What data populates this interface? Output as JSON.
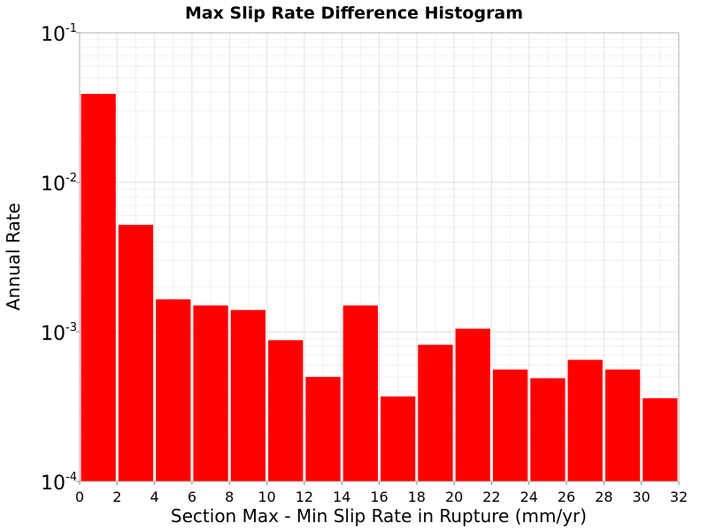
{
  "chart_data": {
    "type": "bar",
    "title": "Max Slip Rate Difference Histogram",
    "xlabel": "Section Max - Min Slip Rate in Rupture (mm/yr)",
    "ylabel": "Annual Rate",
    "xlim": [
      0,
      32
    ],
    "ylim": [
      0.0001,
      0.1
    ],
    "y_scale": "log",
    "grid": true,
    "bar_color": "#ff0000",
    "bin_width": 2,
    "x_ticks": [
      "0",
      "2",
      "4",
      "6",
      "8",
      "10",
      "12",
      "14",
      "16",
      "18",
      "20",
      "22",
      "24",
      "26",
      "28",
      "30",
      "32"
    ],
    "y_ticks": [
      {
        "base": "10",
        "exp": "-1",
        "value": 0.1
      },
      {
        "base": "10",
        "exp": "-2",
        "value": 0.01
      },
      {
        "base": "10",
        "exp": "-3",
        "value": 0.001
      },
      {
        "base": "10",
        "exp": "-4",
        "value": 0.0001
      }
    ],
    "bins": [
      0,
      2,
      4,
      6,
      8,
      10,
      12,
      14,
      16,
      18,
      20,
      22,
      24,
      26,
      28,
      30
    ],
    "values": [
      0.039,
      0.0052,
      0.00165,
      0.0015,
      0.0014,
      0.00088,
      0.0005,
      0.0015,
      0.00037,
      0.00082,
      0.00105,
      0.00056,
      0.00049,
      0.00065,
      0.00056,
      0.00036
    ]
  }
}
